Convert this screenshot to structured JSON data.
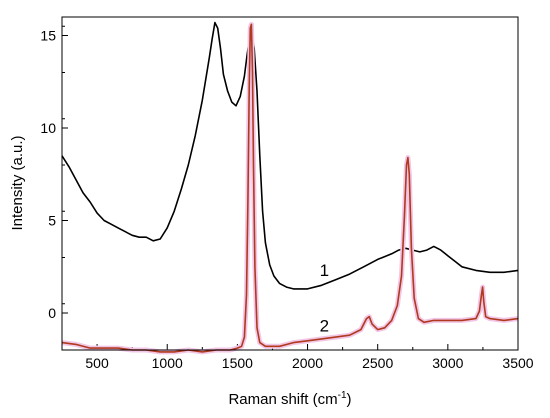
{
  "chart_data": {
    "type": "line",
    "title": "",
    "xlabel": "Raman shift (cm",
    "xlabel_sup": "-1",
    "xlabel_end": ")",
    "ylabel": "Intensity (a.u.)",
    "xlim": [
      250,
      3500
    ],
    "ylim": [
      -2,
      16
    ],
    "xticks": [
      500,
      1000,
      1500,
      2000,
      2500,
      3000,
      3500
    ],
    "yticks": [
      0,
      5,
      10,
      15
    ],
    "grid": false,
    "series": [
      {
        "name": "1",
        "color": "#000000",
        "x": [
          250,
          300,
          350,
          400,
          450,
          500,
          550,
          600,
          650,
          700,
          750,
          800,
          850,
          900,
          950,
          1000,
          1050,
          1100,
          1150,
          1200,
          1250,
          1300,
          1320,
          1340,
          1360,
          1380,
          1400,
          1430,
          1460,
          1490,
          1520,
          1550,
          1570,
          1590,
          1600,
          1620,
          1640,
          1660,
          1680,
          1700,
          1730,
          1760,
          1800,
          1850,
          1900,
          1950,
          2000,
          2100,
          2200,
          2300,
          2400,
          2500,
          2600,
          2650,
          2700,
          2750,
          2800,
          2850,
          2900,
          2950,
          3000,
          3050,
          3100,
          3200,
          3300,
          3400,
          3500
        ],
        "y": [
          8.5,
          7.9,
          7.2,
          6.5,
          6.0,
          5.4,
          5.0,
          4.8,
          4.6,
          4.4,
          4.2,
          4.1,
          4.1,
          3.9,
          4.0,
          4.6,
          5.5,
          6.7,
          8.0,
          9.6,
          11.5,
          13.8,
          14.8,
          15.7,
          15.4,
          14.3,
          12.9,
          12.0,
          11.4,
          11.2,
          11.7,
          12.8,
          14.0,
          15.0,
          15.2,
          14.3,
          12.0,
          8.5,
          5.5,
          3.8,
          2.6,
          2.0,
          1.6,
          1.4,
          1.3,
          1.3,
          1.3,
          1.5,
          1.8,
          2.1,
          2.5,
          2.9,
          3.2,
          3.4,
          3.5,
          3.4,
          3.3,
          3.4,
          3.6,
          3.4,
          3.1,
          2.8,
          2.5,
          2.3,
          2.2,
          2.2,
          2.3
        ]
      },
      {
        "name": "2",
        "color": "#b03a1e",
        "x": [
          250,
          350,
          450,
          550,
          650,
          750,
          850,
          950,
          1050,
          1150,
          1250,
          1350,
          1450,
          1500,
          1530,
          1550,
          1565,
          1575,
          1585,
          1592,
          1600,
          1608,
          1615,
          1625,
          1640,
          1660,
          1700,
          1800,
          1900,
          2000,
          2100,
          2200,
          2300,
          2380,
          2420,
          2440,
          2460,
          2500,
          2550,
          2600,
          2640,
          2670,
          2690,
          2705,
          2715,
          2725,
          2740,
          2760,
          2790,
          2830,
          2900,
          3000,
          3100,
          3200,
          3225,
          3240,
          3248,
          3256,
          3270,
          3300,
          3400,
          3500
        ],
        "y": [
          -1.6,
          -1.7,
          -1.9,
          -1.9,
          -1.9,
          -2.0,
          -2.0,
          -2.1,
          -2.1,
          -2.0,
          -2.1,
          -2.0,
          -2.0,
          -1.9,
          -1.8,
          -1.3,
          1.0,
          6.0,
          12.5,
          15.4,
          15.6,
          13.0,
          8.0,
          2.5,
          -0.8,
          -1.6,
          -1.8,
          -1.8,
          -1.6,
          -1.5,
          -1.4,
          -1.3,
          -1.2,
          -0.9,
          -0.3,
          -0.2,
          -0.6,
          -0.9,
          -0.8,
          -0.4,
          0.4,
          2.0,
          5.2,
          8.0,
          8.4,
          7.5,
          3.5,
          0.8,
          -0.3,
          -0.5,
          -0.4,
          -0.4,
          -0.4,
          -0.3,
          0.1,
          1.0,
          1.4,
          0.6,
          -0.2,
          -0.3,
          -0.4,
          -0.3
        ]
      }
    ],
    "annotations": [
      {
        "text": "1",
        "x": 2120,
        "y": 2.0
      },
      {
        "text": "2",
        "x": 2120,
        "y": -1.0
      }
    ]
  }
}
